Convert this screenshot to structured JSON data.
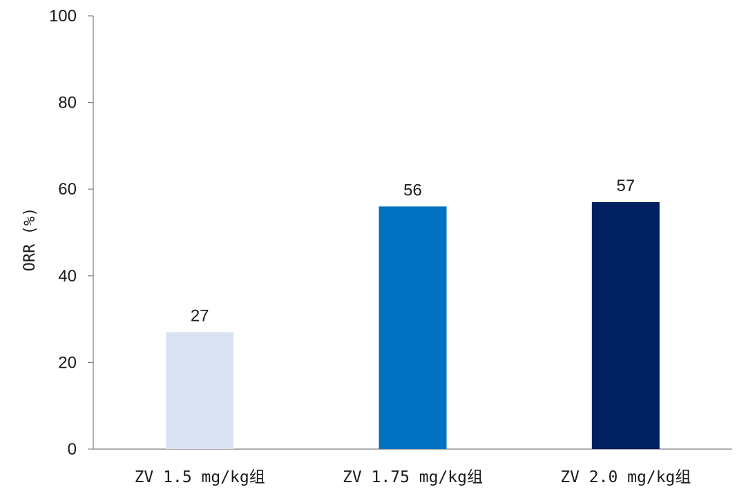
{
  "chart_data": {
    "type": "bar",
    "title": "",
    "xlabel": "",
    "ylabel": "ORR (%)",
    "ylim": [
      0,
      100
    ],
    "yticks": [
      0,
      20,
      40,
      60,
      80,
      100
    ],
    "categories": [
      "ZV 1.5 mg/kg组",
      "ZV 1.75 mg/kg组",
      "ZV 2.0 mg/kg组"
    ],
    "values": [
      27,
      56,
      57
    ],
    "data_labels": [
      "27",
      "56",
      "57"
    ],
    "bar_colors": [
      "#dae3f3",
      "#0070c0",
      "#002060"
    ],
    "grid": false,
    "legend": "none"
  }
}
